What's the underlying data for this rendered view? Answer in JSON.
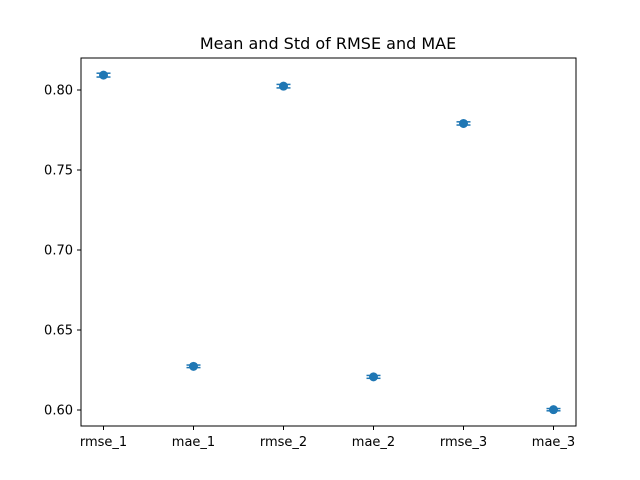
{
  "chart_data": {
    "type": "scatter",
    "title": "Mean and Std of RMSE and MAE",
    "xlabel": "",
    "ylabel": "",
    "categories": [
      "rmse_1",
      "mae_1",
      "rmse_2",
      "mae_2",
      "rmse_3",
      "mae_3"
    ],
    "values": [
      0.8093,
      0.6273,
      0.8024,
      0.6207,
      0.7791,
      0.6002
    ],
    "errors": [
      0.0012,
      0.0008,
      0.0011,
      0.0009,
      0.001,
      0.0007
    ],
    "ylim": [
      0.59,
      0.82
    ],
    "yticks": [
      0.6,
      0.65,
      0.7,
      0.75,
      0.8
    ],
    "ytick_labels": [
      "0.60",
      "0.65",
      "0.70",
      "0.75",
      "0.80"
    ],
    "grid": false,
    "color": "#1f77b4"
  }
}
